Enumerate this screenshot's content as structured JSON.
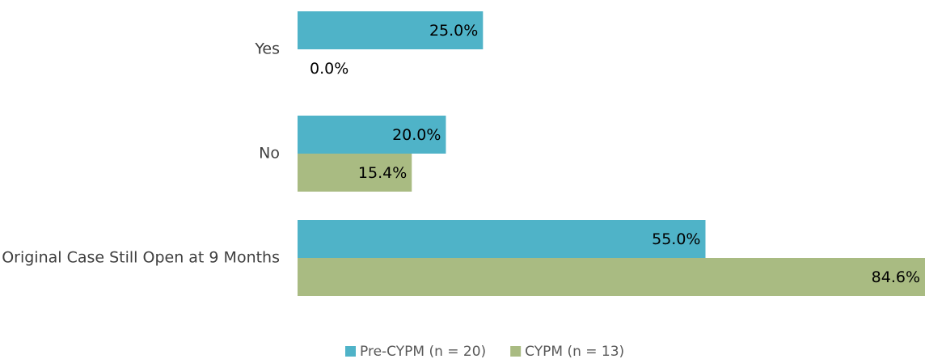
{
  "chart_data": {
    "type": "hbar",
    "categories": [
      "Yes",
      "No",
      "Original Case Still Open at 9 Months"
    ],
    "series": [
      {
        "name": "Pre-CYPM (n = 20)",
        "color": "#4fb3c8",
        "values": [
          25.0,
          20.0,
          55.0
        ],
        "value_labels": [
          "25.0%",
          "20.0%",
          "55.0%"
        ]
      },
      {
        "name": "CYPM (n = 13)",
        "color": "#a9bb82",
        "values": [
          0.0,
          15.4,
          84.6
        ],
        "value_labels": [
          "0.0%",
          "15.4%",
          "84.6%"
        ]
      }
    ],
    "xlim": [
      0,
      84.6
    ],
    "legend": "bottom"
  }
}
